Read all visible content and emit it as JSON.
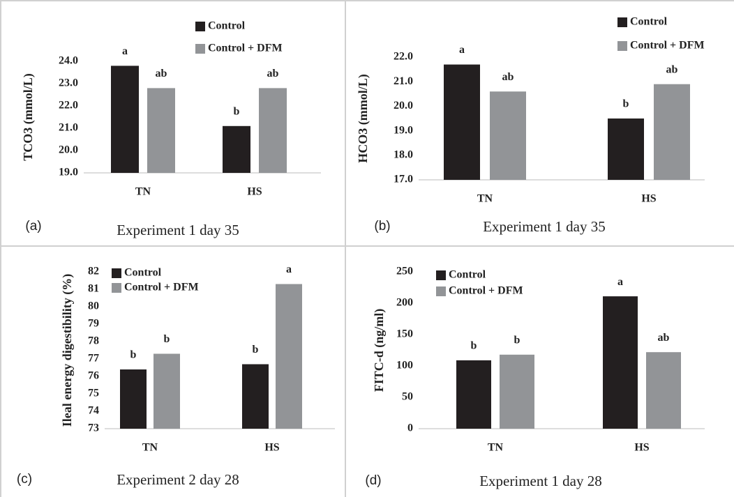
{
  "chart_data": [
    {
      "type": "bar",
      "panel_label": "(a)",
      "caption": "Experiment 1 day 35",
      "ylabel": "TCO3 (mmol/L)",
      "categories": [
        "TN",
        "HS"
      ],
      "series": [
        {
          "name": "Control",
          "color": "#231f20",
          "values": [
            23.8,
            21.1
          ],
          "annotations": [
            "a",
            "b"
          ]
        },
        {
          "name": "Control + DFM",
          "color": "#929497",
          "values": [
            22.8,
            22.8
          ],
          "annotations": [
            "ab",
            "ab"
          ]
        }
      ],
      "ylim": [
        19,
        24
      ],
      "yticks": [
        {
          "value": 19,
          "label": "19.0"
        },
        {
          "value": 20,
          "label": "20.0"
        },
        {
          "value": 21,
          "label": "21.0"
        },
        {
          "value": 22,
          "label": "22.0"
        },
        {
          "value": 23,
          "label": "23.0"
        },
        {
          "value": 24,
          "label": "24.0"
        }
      ]
    },
    {
      "type": "bar",
      "panel_label": "(b)",
      "caption": "Experiment 1 day 35",
      "ylabel": "HCO3 (mmol/L)",
      "categories": [
        "TN",
        "HS"
      ],
      "series": [
        {
          "name": "Control",
          "color": "#231f20",
          "values": [
            21.7,
            19.5
          ],
          "annotations": [
            "a",
            "b"
          ]
        },
        {
          "name": "Control + DFM",
          "color": "#929497",
          "values": [
            20.6,
            20.9
          ],
          "annotations": [
            "ab",
            "ab"
          ]
        }
      ],
      "ylim": [
        17,
        22
      ],
      "yticks": [
        {
          "value": 17,
          "label": "17.0"
        },
        {
          "value": 18,
          "label": "18.0"
        },
        {
          "value": 19,
          "label": "19.0"
        },
        {
          "value": 20,
          "label": "20.0"
        },
        {
          "value": 21,
          "label": "21.0"
        },
        {
          "value": 22,
          "label": "22.0"
        }
      ]
    },
    {
      "type": "bar",
      "panel_label": "(c)",
      "caption": "Experiment 2 day 28",
      "ylabel": "Ileal energy digestibility (%)",
      "categories": [
        "TN",
        "HS"
      ],
      "series": [
        {
          "name": "Control",
          "color": "#231f20",
          "values": [
            76.4,
            76.7
          ],
          "annotations": [
            "b",
            "b"
          ]
        },
        {
          "name": "Control + DFM",
          "color": "#929497",
          "values": [
            77.3,
            81.3
          ],
          "annotations": [
            "b",
            "a"
          ]
        }
      ],
      "ylim": [
        73,
        82
      ],
      "yticks": [
        73,
        74,
        75,
        76,
        77,
        78,
        79,
        80,
        81,
        82
      ]
    },
    {
      "type": "bar",
      "panel_label": "(d)",
      "caption": "Experiment 1 day 28",
      "ylabel": "FITC-d (ng/ml)",
      "categories": [
        "TN",
        "HS"
      ],
      "series": [
        {
          "name": "Control",
          "color": "#231f20",
          "values": [
            109,
            211
          ],
          "annotations": [
            "b",
            "a"
          ]
        },
        {
          "name": "Control + DFM",
          "color": "#929497",
          "values": [
            118,
            122
          ],
          "annotations": [
            "b",
            "ab"
          ]
        }
      ],
      "ylim": [
        0,
        250
      ],
      "yticks": [
        0,
        50,
        100,
        150,
        200,
        250
      ]
    }
  ]
}
